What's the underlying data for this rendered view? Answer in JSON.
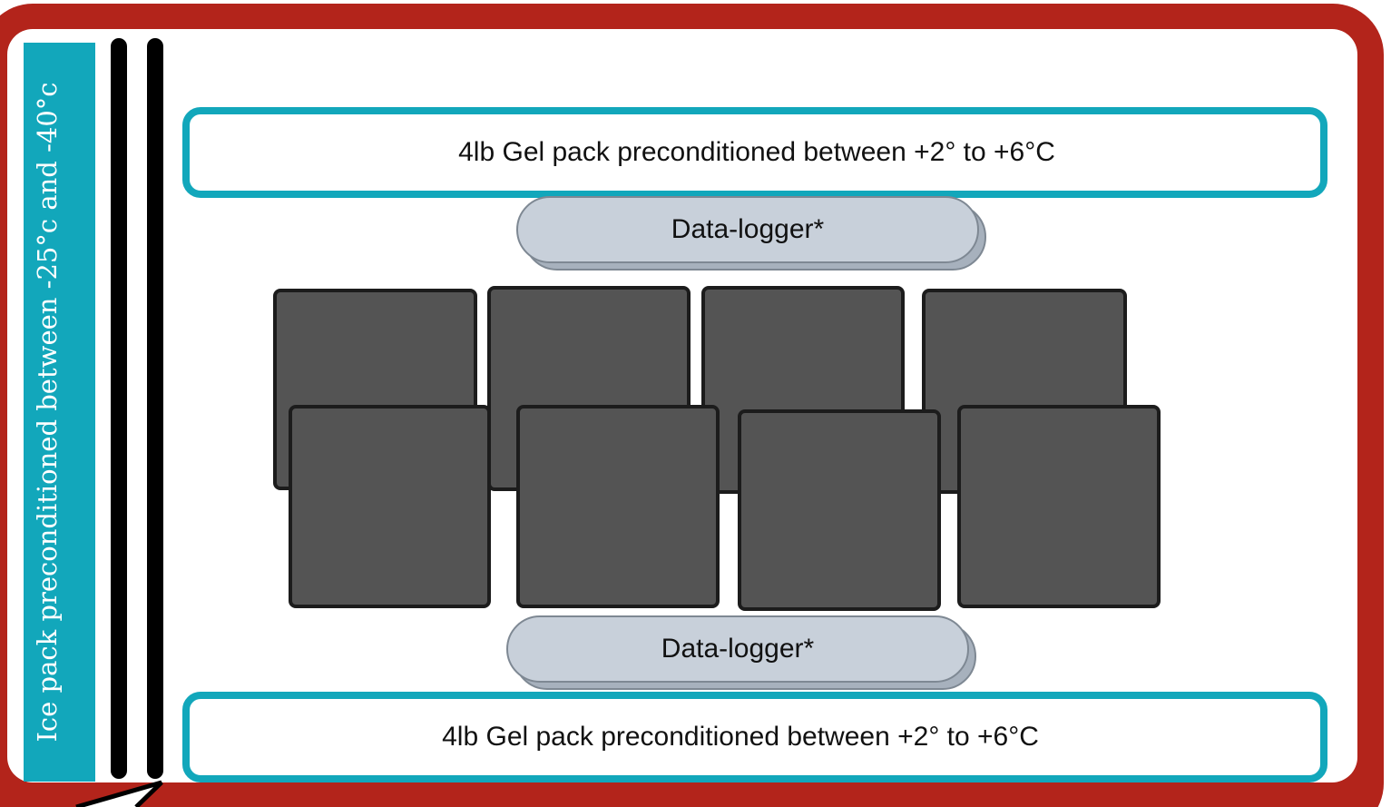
{
  "colors": {
    "cooler_wall": "#b3241b",
    "ice_pack": "#12a7bb",
    "gel_pack_border": "#12a7bb",
    "data_logger_fill": "#c8d0da",
    "product_fill": "#545454",
    "divider": "#000000"
  },
  "ice_pack": {
    "label": "Ice pack preconditioned between -25°c and -40°c"
  },
  "gel_pack_top": {
    "label": "4lb Gel pack preconditioned between +2° to +6°C"
  },
  "gel_pack_bottom": {
    "label": "4lb Gel pack preconditioned between +2° to +6°C"
  },
  "data_logger_top": {
    "label": "Data-logger*"
  },
  "data_logger_bottom": {
    "label": "Data-logger*"
  },
  "product_boxes": {
    "back_row_count": 4,
    "front_row_count": 4
  }
}
